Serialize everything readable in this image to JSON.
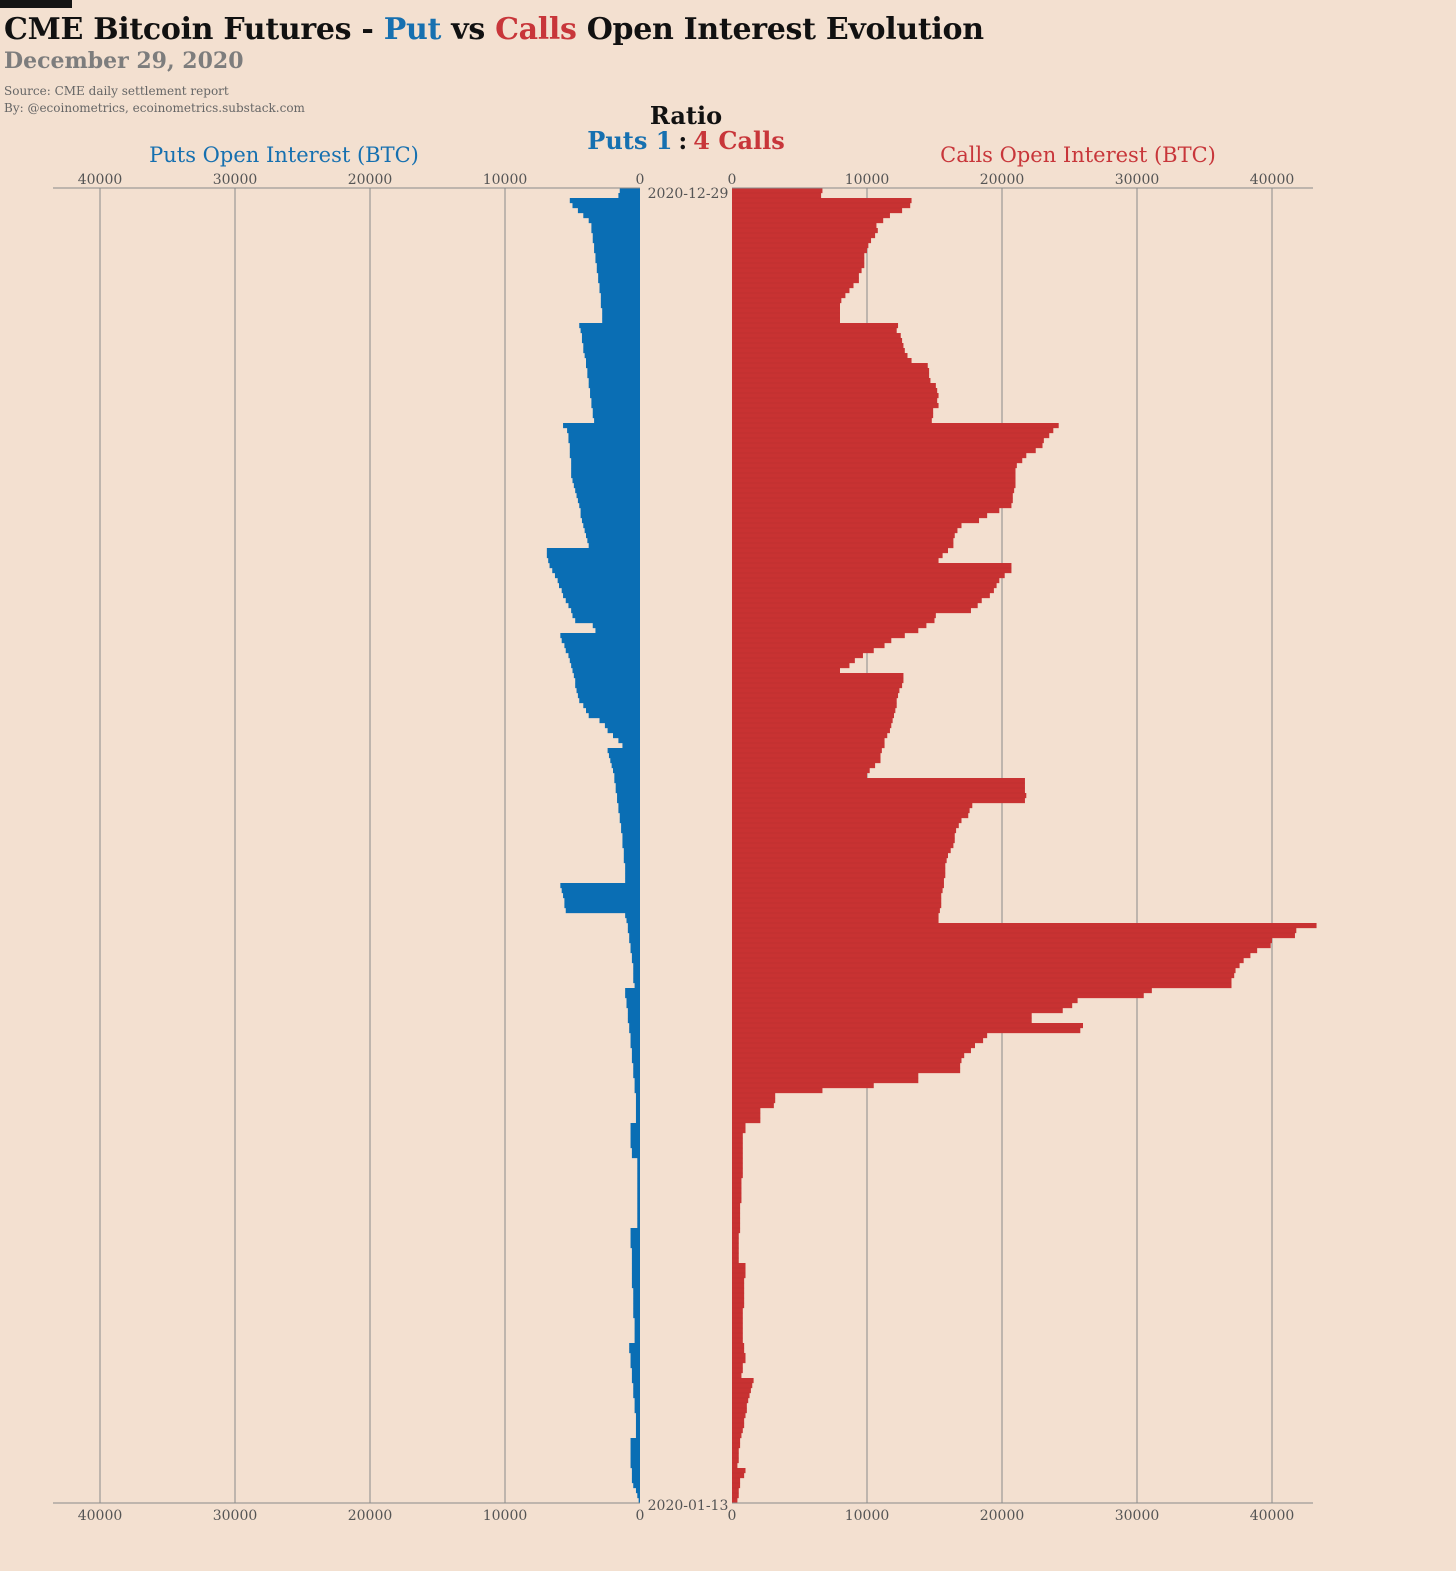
{
  "header": {
    "title_prefix": "CME Bitcoin Futures - ",
    "title_put": "Put",
    "title_vs": " vs ",
    "title_calls": "Calls",
    "title_suffix": " Open Interest Evolution",
    "subtitle": "December 29, 2020",
    "source": "Source: CME daily settlement report",
    "byline": "By: @ecoinometrics, ecoinometrics.substack.com"
  },
  "ratio": {
    "title": "Ratio",
    "puts_label": "Puts 1",
    "separator": ":",
    "calls_label": "4 Calls"
  },
  "colors": {
    "puts": "#0a6eb4",
    "calls": "#c83232",
    "background": "#f3e0d0",
    "grid": "#8a8a8a"
  },
  "chart_data": {
    "type": "bar",
    "orientation": "horizontal-butterfly",
    "y_top_label": "2020-12-29",
    "y_bottom_label": "2020-01-13",
    "left_axis_label": "Puts Open Interest (BTC)",
    "right_axis_label": "Calls Open Interest (BTC)",
    "left_ticks": [
      40000,
      30000,
      20000,
      10000,
      0
    ],
    "right_ticks": [
      0,
      10000,
      20000,
      30000,
      40000
    ],
    "xlim": [
      0,
      43500
    ],
    "grid": true,
    "series": [
      {
        "name": "Puts",
        "values": [
          1500,
          1600,
          5200,
          5000,
          4600,
          4200,
          3800,
          3600,
          3600,
          3500,
          3500,
          3400,
          3400,
          3300,
          3300,
          3200,
          3200,
          3100,
          3100,
          3000,
          3000,
          2900,
          2900,
          2900,
          2800,
          2800,
          2800,
          4500,
          4400,
          4300,
          4300,
          4200,
          4200,
          4100,
          4000,
          4000,
          3900,
          3900,
          3800,
          3800,
          3700,
          3700,
          3600,
          3600,
          3500,
          3500,
          3400,
          5700,
          5400,
          5300,
          5300,
          5200,
          5200,
          5200,
          5100,
          5100,
          5100,
          5100,
          5000,
          4900,
          4800,
          4700,
          4600,
          4500,
          4400,
          4400,
          4300,
          4200,
          4100,
          4000,
          3900,
          3800,
          6900,
          6900,
          6800,
          6700,
          6500,
          6300,
          6100,
          6000,
          5800,
          5700,
          5500,
          5300,
          5100,
          5000,
          4800,
          3500,
          3300,
          5900,
          5800,
          5600,
          5500,
          5300,
          5200,
          5100,
          5000,
          4900,
          4800,
          4800,
          4700,
          4600,
          4500,
          4200,
          4000,
          3800,
          3000,
          2600,
          2400,
          2000,
          1600,
          1300,
          2400,
          2300,
          2200,
          2100,
          2000,
          1900,
          1900,
          1800,
          1800,
          1700,
          1700,
          1600,
          1600,
          1500,
          1500,
          1400,
          1400,
          1300,
          1300,
          1300,
          1200,
          1200,
          1200,
          1100,
          1100,
          1100,
          1100,
          5900,
          5800,
          5700,
          5600,
          5600,
          5500,
          1100,
          1000,
          900,
          900,
          800,
          800,
          700,
          700,
          600,
          600,
          500,
          500,
          500,
          500,
          400,
          1100,
          1100,
          1000,
          1000,
          900,
          900,
          900,
          800,
          800,
          700,
          700,
          700,
          600,
          600,
          600,
          500,
          500,
          500,
          400,
          400,
          400,
          300,
          300,
          300,
          300,
          300,
          300,
          700,
          700,
          700,
          700,
          700,
          600,
          600,
          200,
          200,
          200,
          200,
          200,
          200,
          200,
          200,
          200,
          200,
          200,
          200,
          200,
          200,
          700,
          700,
          700,
          700,
          600,
          600,
          600,
          600,
          600,
          600,
          600,
          600,
          500,
          500,
          500,
          500,
          500,
          500,
          400,
          400,
          400,
          400,
          400,
          800,
          800,
          700,
          700,
          700,
          600,
          600,
          600,
          500,
          500,
          500,
          400,
          400,
          400,
          300,
          300,
          300,
          300,
          300,
          700,
          700,
          700,
          700,
          700,
          700,
          600,
          600,
          600,
          500,
          300,
          200,
          100
        ]
      },
      {
        "name": "Calls",
        "values": [
          6700,
          6600,
          13300,
          13200,
          12600,
          11700,
          11200,
          10700,
          10800,
          10600,
          10300,
          10100,
          10000,
          9800,
          9800,
          9800,
          9600,
          9400,
          9400,
          9000,
          8700,
          8400,
          8100,
          8000,
          8000,
          8000,
          8000,
          12300,
          12200,
          12500,
          12600,
          12700,
          12800,
          13000,
          13300,
          14500,
          14600,
          14600,
          14700,
          15100,
          15200,
          15300,
          15200,
          15300,
          14900,
          14900,
          14800,
          24200,
          23800,
          23500,
          23100,
          23000,
          22500,
          21800,
          21500,
          21100,
          21000,
          21000,
          21000,
          21000,
          20900,
          20800,
          20800,
          20700,
          19800,
          18900,
          18300,
          17000,
          16700,
          16500,
          16400,
          16400,
          16000,
          15600,
          15300,
          20700,
          20700,
          20200,
          19800,
          19600,
          19400,
          19100,
          18500,
          18200,
          17700,
          15100,
          15000,
          14400,
          13800,
          12800,
          11800,
          11300,
          10500,
          9700,
          9100,
          8700,
          8000,
          12700,
          12700,
          12600,
          12400,
          12300,
          12200,
          12200,
          12100,
          12000,
          11900,
          11800,
          11700,
          11500,
          11300,
          11300,
          11100,
          11000,
          11000,
          10600,
          10200,
          10000,
          21700,
          21700,
          21700,
          21800,
          21700,
          17800,
          17600,
          17500,
          17000,
          16800,
          16600,
          16500,
          16500,
          16400,
          16200,
          16000,
          15900,
          15800,
          15800,
          15800,
          15700,
          15700,
          15600,
          15500,
          15500,
          15500,
          15400,
          15300,
          15300,
          43300,
          41800,
          41700,
          40000,
          39900,
          38900,
          38400,
          37900,
          37600,
          37300,
          37200,
          37000,
          37000,
          31100,
          30500,
          25600,
          25200,
          24500,
          22200,
          22200,
          26000,
          25800,
          18900,
          18600,
          18000,
          17700,
          17200,
          17000,
          16900,
          16900,
          13800,
          13800,
          10500,
          6700,
          3200,
          3200,
          3100,
          2100,
          2100,
          2100,
          1000,
          1000,
          800,
          800,
          800,
          800,
          800,
          800,
          800,
          800,
          800,
          700,
          700,
          700,
          700,
          700,
          600,
          600,
          600,
          600,
          600,
          600,
          500,
          500,
          500,
          500,
          500,
          500,
          1000,
          1000,
          1000,
          900,
          900,
          900,
          900,
          900,
          900,
          800,
          800,
          800,
          800,
          800,
          800,
          800,
          900,
          900,
          1000,
          1000,
          800,
          800,
          700,
          1600,
          1500,
          1400,
          1300,
          1200,
          1100,
          1100,
          1000,
          900,
          900,
          800,
          700,
          600,
          600,
          500,
          500,
          500,
          400,
          1000,
          900,
          600,
          600,
          500,
          500,
          400,
          300,
          300,
          300,
          300
        ]
      }
    ]
  }
}
